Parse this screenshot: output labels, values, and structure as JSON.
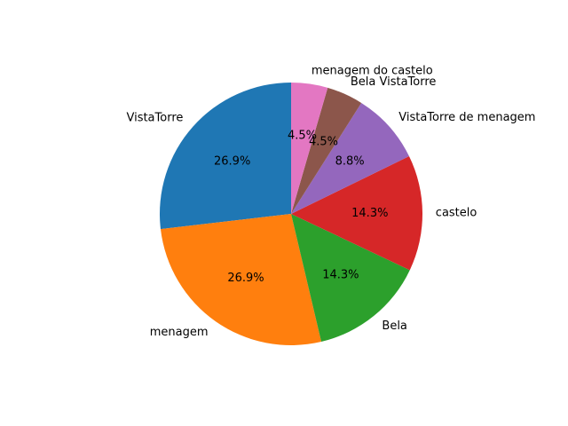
{
  "chart_data": {
    "type": "pie",
    "start_angle_deg": 90,
    "direction": "counterclockwise",
    "slices": [
      {
        "label": "VistaTorre",
        "percent_label": "26.9%",
        "value": 26.9,
        "color": "#1f77b4"
      },
      {
        "label": "menagem",
        "percent_label": "26.9%",
        "value": 26.9,
        "color": "#ff7f0e"
      },
      {
        "label": "Bela",
        "percent_label": "14.3%",
        "value": 14.3,
        "color": "#2ca02c"
      },
      {
        "label": "castelo",
        "percent_label": "14.3%",
        "value": 14.3,
        "color": "#d62728"
      },
      {
        "label": "VistaTorre de menagem",
        "percent_label": "8.8%",
        "value": 8.8,
        "color": "#9467bd"
      },
      {
        "label": "Bela VistaTorre",
        "percent_label": "4.5%",
        "value": 4.5,
        "color": "#8c564b"
      },
      {
        "label": "menagem do castelo",
        "percent_label": "4.5%",
        "value": 4.5,
        "color": "#e377c2"
      }
    ]
  }
}
